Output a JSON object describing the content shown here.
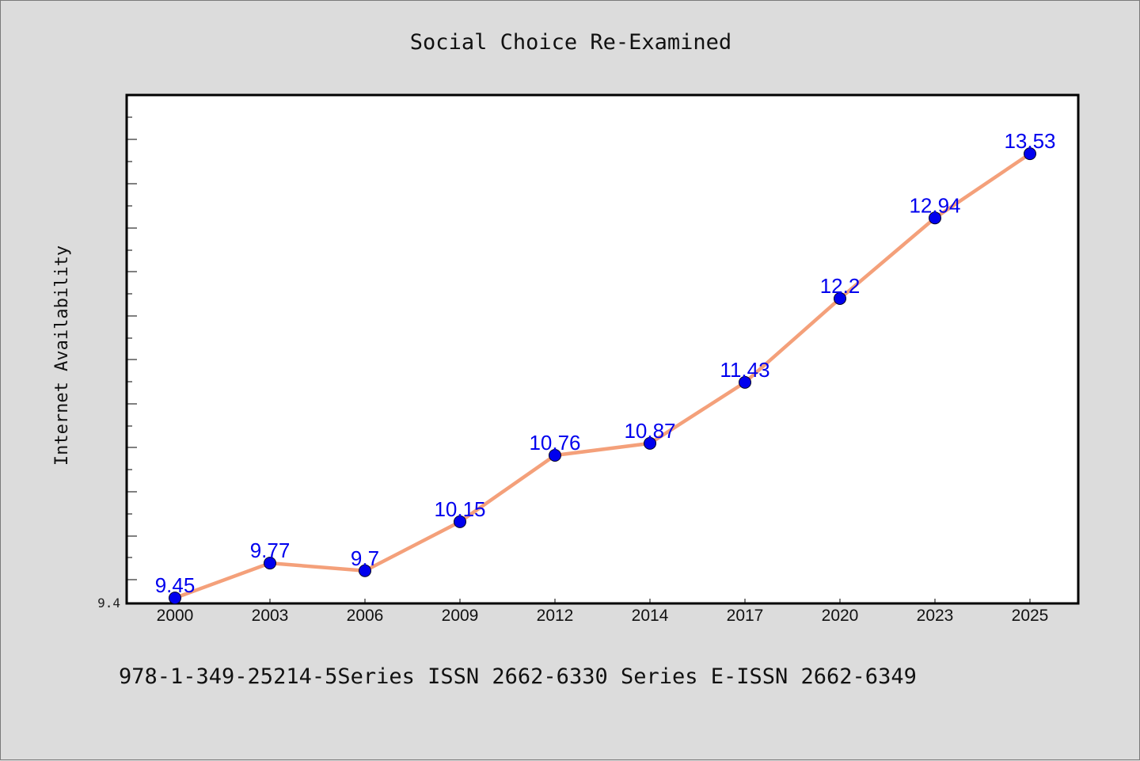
{
  "chart_data": {
    "type": "line",
    "title": "Social Choice Re-Examined",
    "xlabel": "",
    "ylabel": "Internet Availability",
    "categories": [
      "2000",
      "2003",
      "2006",
      "2009",
      "2012",
      "2014",
      "2017",
      "2020",
      "2023",
      "2025"
    ],
    "series": [
      {
        "values": [
          9.45,
          9.77,
          9.7,
          10.15,
          10.76,
          10.87,
          11.43,
          12.2,
          12.94,
          13.53
        ],
        "data_labels": [
          "9.45",
          "9.77",
          "9.7",
          "10.15",
          "10.76",
          "10.87",
          "11.43",
          "12.2",
          "12.94",
          "13.53"
        ],
        "line_color": "#f4a07a",
        "marker_color": "#0000ee"
      }
    ],
    "ylim": [
      9.4,
      14.0
    ],
    "y_tick_label_min": "9.4",
    "data_label_color": "#0000ee",
    "grid": false,
    "legend": "none"
  },
  "footer": {
    "text": "978-1-349-25214-5Series ISSN 2662-6330 Series E-ISSN 2662-6349"
  },
  "colors": {
    "background": "#dcdcdc",
    "plot_background": "#ffffff",
    "axis": "#000000"
  }
}
